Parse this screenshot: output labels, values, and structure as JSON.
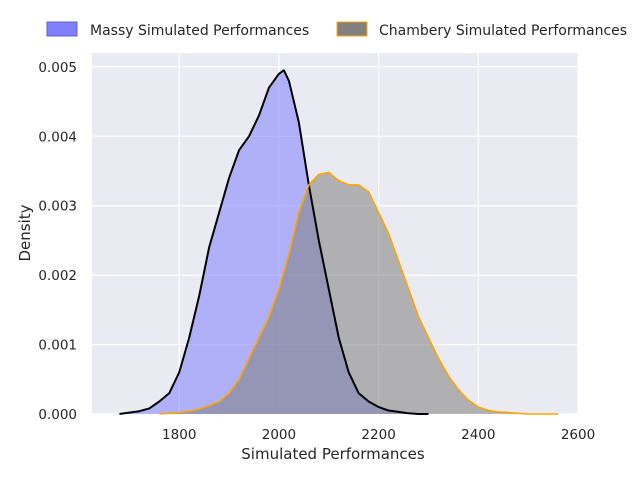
{
  "chart_data": {
    "type": "area",
    "title": "",
    "xlabel": "Simulated Performances",
    "ylabel": "Density",
    "xlim": [
      1625,
      2600
    ],
    "ylim": [
      0,
      0.0052
    ],
    "xticks": [
      1800,
      2000,
      2200,
      2400,
      2600
    ],
    "yticks": [
      0.0,
      0.001,
      0.002,
      0.003,
      0.004,
      0.005
    ],
    "xtick_labels": [
      "1800",
      "2000",
      "2200",
      "2400",
      "2600"
    ],
    "ytick_labels": [
      "0.000",
      "0.001",
      "0.002",
      "0.003",
      "0.004",
      "0.005"
    ],
    "grid": true,
    "legend_position": "top",
    "series": [
      {
        "name": "Massy Simulated Performances",
        "fill_color": "#8080ff",
        "line_color": "#000000",
        "x": [
          1680,
          1700,
          1720,
          1740,
          1760,
          1780,
          1800,
          1820,
          1840,
          1860,
          1880,
          1900,
          1920,
          1940,
          1960,
          1980,
          2000,
          2010,
          2020,
          2040,
          2060,
          2080,
          2100,
          2120,
          2140,
          2160,
          2180,
          2200,
          2220,
          2240,
          2260,
          2280,
          2300
        ],
        "y": [
          0.0,
          2e-05,
          4e-05,
          8e-05,
          0.00018,
          0.0003,
          0.0006,
          0.0011,
          0.0017,
          0.0024,
          0.0029,
          0.0034,
          0.0038,
          0.004,
          0.0043,
          0.0047,
          0.0049,
          0.00495,
          0.0048,
          0.0042,
          0.0033,
          0.0025,
          0.0018,
          0.0011,
          0.0006,
          0.0003,
          0.00018,
          0.0001,
          5e-05,
          3e-05,
          1e-05,
          0.0,
          0.0
        ]
      },
      {
        "name": "Chambery Simulated Performances",
        "fill_color": "#808080",
        "line_color": "#ffa500",
        "x": [
          1760,
          1780,
          1800,
          1820,
          1840,
          1860,
          1880,
          1900,
          1920,
          1940,
          1960,
          1980,
          2000,
          2020,
          2040,
          2060,
          2080,
          2100,
          2110,
          2120,
          2140,
          2160,
          2180,
          2200,
          2220,
          2240,
          2260,
          2280,
          2300,
          2320,
          2340,
          2360,
          2380,
          2400,
          2420,
          2440,
          2460,
          2480,
          2500,
          2520,
          2540,
          2560
        ],
        "y": [
          0.0,
          1e-05,
          2e-05,
          4e-05,
          7e-05,
          0.00012,
          0.00018,
          0.0003,
          0.0005,
          0.0008,
          0.0011,
          0.0014,
          0.0018,
          0.0023,
          0.0029,
          0.0033,
          0.00345,
          0.00348,
          0.00342,
          0.00336,
          0.0033,
          0.0033,
          0.0032,
          0.0029,
          0.0026,
          0.0022,
          0.0018,
          0.0014,
          0.0011,
          0.0008,
          0.00055,
          0.00035,
          0.0002,
          0.0001,
          5e-05,
          3e-05,
          2e-05,
          1e-05,
          0.0,
          0.0,
          0.0,
          0.0
        ]
      }
    ]
  }
}
